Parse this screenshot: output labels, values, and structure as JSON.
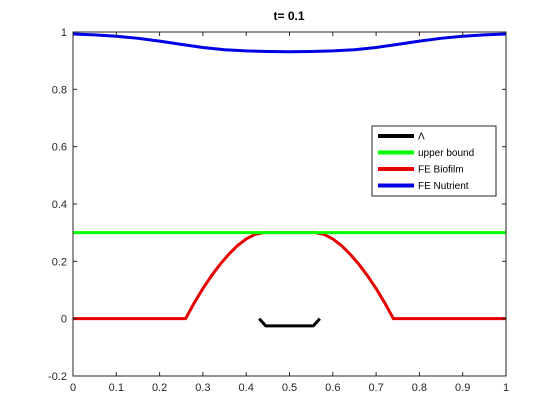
{
  "chart_data": {
    "type": "line",
    "title": "t=   0.1",
    "xlabel": "",
    "ylabel": "",
    "xlim": [
      0,
      1
    ],
    "ylim": [
      -0.2,
      1
    ],
    "x_ticks": [
      "0",
      "0.1",
      "0.2",
      "0.3",
      "0.4",
      "0.5",
      "0.6",
      "0.7",
      "0.8",
      "0.9",
      "1"
    ],
    "y_ticks": [
      "-0.2",
      "0",
      "0.2",
      "0.4",
      "0.6",
      "0.8",
      "1"
    ],
    "grid": false,
    "legend_position": "right",
    "series": [
      {
        "name": "Λ",
        "color": "#000000",
        "x": [
          0.43,
          0.445,
          0.455,
          0.545,
          0.555,
          0.57
        ],
        "y": [
          0,
          -0.025,
          -0.025,
          -0.025,
          -0.025,
          0
        ]
      },
      {
        "name": "upper bound",
        "color": "#00ff00",
        "x": [
          0,
          1
        ],
        "y": [
          0.3,
          0.3
        ]
      },
      {
        "name": "FE Biofilm",
        "color": "#e60000",
        "x": [
          0,
          0.26,
          0.28,
          0.3,
          0.32,
          0.34,
          0.36,
          0.38,
          0.4,
          0.42,
          0.44,
          0.56,
          0.58,
          0.6,
          0.62,
          0.64,
          0.66,
          0.68,
          0.7,
          0.72,
          0.74,
          1
        ],
        "y": [
          0,
          0,
          0.055,
          0.105,
          0.15,
          0.19,
          0.225,
          0.255,
          0.278,
          0.294,
          0.3,
          0.3,
          0.294,
          0.278,
          0.255,
          0.225,
          0.19,
          0.15,
          0.105,
          0.055,
          0,
          0
        ]
      },
      {
        "name": "FE Nutrient",
        "color": "#0000e6",
        "x": [
          0,
          0.05,
          0.1,
          0.15,
          0.2,
          0.25,
          0.3,
          0.35,
          0.4,
          0.45,
          0.5,
          0.55,
          0.6,
          0.65,
          0.7,
          0.75,
          0.8,
          0.85,
          0.9,
          0.95,
          1
        ],
        "y": [
          0.993,
          0.99,
          0.985,
          0.978,
          0.968,
          0.957,
          0.946,
          0.938,
          0.934,
          0.932,
          0.931,
          0.932,
          0.934,
          0.938,
          0.946,
          0.957,
          0.968,
          0.978,
          0.985,
          0.99,
          0.993
        ]
      }
    ]
  }
}
